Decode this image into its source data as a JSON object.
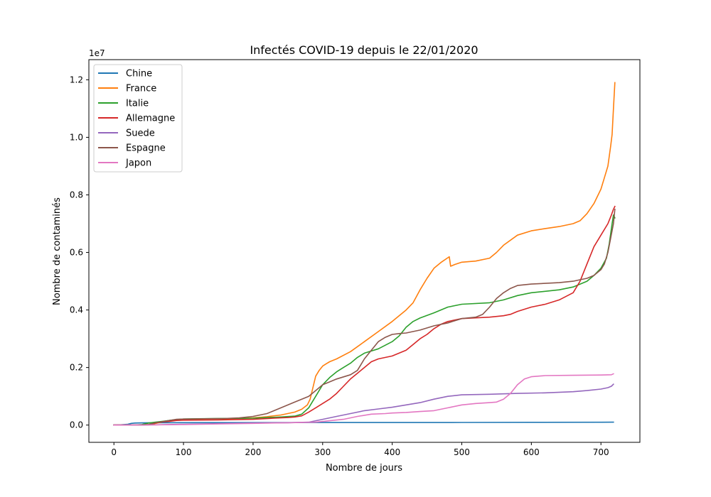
{
  "chart_data": {
    "type": "line",
    "title": "Infectés COVID-19 depuis le 22/01/2020",
    "xlabel": "Nombre de jours",
    "ylabel": "Nombre de contaminés",
    "y_offset_label": "1e7",
    "xlim": [
      -36,
      756
    ],
    "ylim": [
      -0.06,
      1.27
    ],
    "y_unit_multiplier": 10000000,
    "x_ticks": [
      0,
      100,
      200,
      300,
      400,
      500,
      600,
      700
    ],
    "x_tick_labels": [
      "0",
      "100",
      "200",
      "300",
      "400",
      "500",
      "600",
      "700"
    ],
    "y_ticks": [
      0,
      0.2,
      0.4,
      0.6,
      0.8,
      1.0,
      1.2
    ],
    "y_tick_labels": [
      "0.0",
      "0.2",
      "0.4",
      "0.6",
      "0.8",
      "1.0",
      "1.2"
    ],
    "grid": false,
    "legend_position": "top-left",
    "series": [
      {
        "name": "Chine",
        "color": "#1f77b4",
        "points": [
          [
            0,
            0.0005
          ],
          [
            10,
            0.001
          ],
          [
            20,
            0.003
          ],
          [
            25,
            0.006
          ],
          [
            30,
            0.007
          ],
          [
            40,
            0.0077
          ],
          [
            60,
            0.008
          ],
          [
            100,
            0.0083
          ],
          [
            200,
            0.0086
          ],
          [
            300,
            0.0088
          ],
          [
            400,
            0.0089
          ],
          [
            500,
            0.009
          ],
          [
            600,
            0.0095
          ],
          [
            700,
            0.0099
          ],
          [
            718,
            0.01
          ]
        ]
      },
      {
        "name": "France",
        "color": "#ff7f0e",
        "points": [
          [
            0,
            0
          ],
          [
            40,
            0.0002
          ],
          [
            50,
            0.0008
          ],
          [
            55,
            0.002
          ],
          [
            60,
            0.006
          ],
          [
            70,
            0.011
          ],
          [
            80,
            0.016
          ],
          [
            90,
            0.019
          ],
          [
            100,
            0.02
          ],
          [
            150,
            0.022
          ],
          [
            180,
            0.023
          ],
          [
            200,
            0.025
          ],
          [
            220,
            0.029
          ],
          [
            240,
            0.035
          ],
          [
            260,
            0.045
          ],
          [
            270,
            0.055
          ],
          [
            278,
            0.07
          ],
          [
            282,
            0.09
          ],
          [
            286,
            0.13
          ],
          [
            290,
            0.17
          ],
          [
            295,
            0.19
          ],
          [
            300,
            0.205
          ],
          [
            305,
            0.213
          ],
          [
            310,
            0.22
          ],
          [
            320,
            0.23
          ],
          [
            340,
            0.255
          ],
          [
            360,
            0.29
          ],
          [
            380,
            0.325
          ],
          [
            400,
            0.36
          ],
          [
            420,
            0.4
          ],
          [
            430,
            0.425
          ],
          [
            440,
            0.47
          ],
          [
            450,
            0.51
          ],
          [
            460,
            0.545
          ],
          [
            470,
            0.565
          ],
          [
            482,
            0.585
          ],
          [
            484,
            0.552
          ],
          [
            490,
            0.558
          ],
          [
            500,
            0.566
          ],
          [
            520,
            0.57
          ],
          [
            540,
            0.58
          ],
          [
            550,
            0.6
          ],
          [
            560,
            0.625
          ],
          [
            580,
            0.66
          ],
          [
            600,
            0.675
          ],
          [
            620,
            0.683
          ],
          [
            640,
            0.69
          ],
          [
            660,
            0.7
          ],
          [
            670,
            0.71
          ],
          [
            680,
            0.735
          ],
          [
            690,
            0.77
          ],
          [
            700,
            0.82
          ],
          [
            705,
            0.86
          ],
          [
            710,
            0.9
          ],
          [
            714,
            0.97
          ],
          [
            716,
            1.01
          ],
          [
            718,
            1.1
          ],
          [
            720,
            1.19
          ]
        ]
      },
      {
        "name": "Italie",
        "color": "#2ca02c",
        "points": [
          [
            0,
            0
          ],
          [
            30,
            0.0002
          ],
          [
            40,
            0.002
          ],
          [
            50,
            0.007
          ],
          [
            60,
            0.01
          ],
          [
            70,
            0.013
          ],
          [
            80,
            0.016
          ],
          [
            90,
            0.019
          ],
          [
            100,
            0.021
          ],
          [
            120,
            0.022
          ],
          [
            150,
            0.023
          ],
          [
            200,
            0.024
          ],
          [
            220,
            0.026
          ],
          [
            240,
            0.028
          ],
          [
            260,
            0.031
          ],
          [
            270,
            0.038
          ],
          [
            280,
            0.06
          ],
          [
            290,
            0.1
          ],
          [
            300,
            0.14
          ],
          [
            310,
            0.165
          ],
          [
            320,
            0.185
          ],
          [
            330,
            0.2
          ],
          [
            340,
            0.215
          ],
          [
            350,
            0.235
          ],
          [
            360,
            0.25
          ],
          [
            380,
            0.265
          ],
          [
            400,
            0.29
          ],
          [
            410,
            0.31
          ],
          [
            420,
            0.34
          ],
          [
            430,
            0.36
          ],
          [
            440,
            0.372
          ],
          [
            460,
            0.39
          ],
          [
            480,
            0.41
          ],
          [
            500,
            0.42
          ],
          [
            540,
            0.425
          ],
          [
            560,
            0.435
          ],
          [
            580,
            0.45
          ],
          [
            600,
            0.46
          ],
          [
            640,
            0.47
          ],
          [
            660,
            0.48
          ],
          [
            680,
            0.5
          ],
          [
            690,
            0.52
          ],
          [
            700,
            0.545
          ],
          [
            708,
            0.58
          ],
          [
            712,
            0.63
          ],
          [
            716,
            0.7
          ],
          [
            718,
            0.73
          ],
          [
            720,
            0.72
          ]
        ]
      },
      {
        "name": "Allemagne",
        "color": "#d62728",
        "points": [
          [
            0,
            0
          ],
          [
            40,
            0.0002
          ],
          [
            50,
            0.002
          ],
          [
            60,
            0.007
          ],
          [
            70,
            0.011
          ],
          [
            80,
            0.013
          ],
          [
            90,
            0.016
          ],
          [
            100,
            0.017
          ],
          [
            150,
            0.018
          ],
          [
            200,
            0.02
          ],
          [
            230,
            0.024
          ],
          [
            250,
            0.026
          ],
          [
            260,
            0.028
          ],
          [
            270,
            0.032
          ],
          [
            280,
            0.045
          ],
          [
            290,
            0.06
          ],
          [
            300,
            0.075
          ],
          [
            310,
            0.09
          ],
          [
            320,
            0.11
          ],
          [
            330,
            0.135
          ],
          [
            340,
            0.16
          ],
          [
            350,
            0.18
          ],
          [
            360,
            0.2
          ],
          [
            370,
            0.22
          ],
          [
            380,
            0.23
          ],
          [
            400,
            0.24
          ],
          [
            420,
            0.26
          ],
          [
            430,
            0.28
          ],
          [
            440,
            0.3
          ],
          [
            450,
            0.315
          ],
          [
            460,
            0.335
          ],
          [
            470,
            0.35
          ],
          [
            480,
            0.36
          ],
          [
            500,
            0.37
          ],
          [
            540,
            0.375
          ],
          [
            560,
            0.38
          ],
          [
            570,
            0.385
          ],
          [
            580,
            0.395
          ],
          [
            600,
            0.41
          ],
          [
            620,
            0.42
          ],
          [
            640,
            0.435
          ],
          [
            660,
            0.46
          ],
          [
            670,
            0.5
          ],
          [
            680,
            0.56
          ],
          [
            690,
            0.62
          ],
          [
            700,
            0.66
          ],
          [
            710,
            0.7
          ],
          [
            715,
            0.73
          ],
          [
            718,
            0.75
          ],
          [
            720,
            0.76
          ]
        ]
      },
      {
        "name": "Suede",
        "color": "#9467bd",
        "points": [
          [
            0,
            0
          ],
          [
            40,
            0.0003
          ],
          [
            60,
            0.001
          ],
          [
            80,
            0.002
          ],
          [
            100,
            0.003
          ],
          [
            150,
            0.005
          ],
          [
            200,
            0.007
          ],
          [
            250,
            0.008
          ],
          [
            280,
            0.01
          ],
          [
            300,
            0.02
          ],
          [
            320,
            0.03
          ],
          [
            340,
            0.04
          ],
          [
            360,
            0.05
          ],
          [
            380,
            0.056
          ],
          [
            400,
            0.062
          ],
          [
            420,
            0.07
          ],
          [
            440,
            0.078
          ],
          [
            460,
            0.09
          ],
          [
            480,
            0.1
          ],
          [
            500,
            0.105
          ],
          [
            540,
            0.107
          ],
          [
            580,
            0.11
          ],
          [
            620,
            0.112
          ],
          [
            660,
            0.116
          ],
          [
            680,
            0.12
          ],
          [
            700,
            0.125
          ],
          [
            710,
            0.13
          ],
          [
            715,
            0.135
          ],
          [
            718,
            0.142
          ]
        ]
      },
      {
        "name": "Espagne",
        "color": "#8c564b",
        "points": [
          [
            0,
            0
          ],
          [
            40,
            0.0002
          ],
          [
            50,
            0.002
          ],
          [
            60,
            0.008
          ],
          [
            70,
            0.012
          ],
          [
            80,
            0.016
          ],
          [
            90,
            0.02
          ],
          [
            100,
            0.021
          ],
          [
            130,
            0.022
          ],
          [
            160,
            0.023
          ],
          [
            180,
            0.025
          ],
          [
            200,
            0.03
          ],
          [
            220,
            0.04
          ],
          [
            240,
            0.06
          ],
          [
            260,
            0.08
          ],
          [
            280,
            0.1
          ],
          [
            290,
            0.12
          ],
          [
            300,
            0.14
          ],
          [
            310,
            0.15
          ],
          [
            320,
            0.16
          ],
          [
            340,
            0.175
          ],
          [
            350,
            0.19
          ],
          [
            360,
            0.23
          ],
          [
            370,
            0.26
          ],
          [
            380,
            0.29
          ],
          [
            390,
            0.305
          ],
          [
            400,
            0.315
          ],
          [
            410,
            0.318
          ],
          [
            420,
            0.32
          ],
          [
            440,
            0.33
          ],
          [
            460,
            0.345
          ],
          [
            480,
            0.355
          ],
          [
            500,
            0.37
          ],
          [
            520,
            0.375
          ],
          [
            530,
            0.385
          ],
          [
            540,
            0.41
          ],
          [
            550,
            0.44
          ],
          [
            560,
            0.46
          ],
          [
            570,
            0.475
          ],
          [
            580,
            0.485
          ],
          [
            600,
            0.49
          ],
          [
            640,
            0.495
          ],
          [
            660,
            0.5
          ],
          [
            670,
            0.505
          ],
          [
            680,
            0.51
          ],
          [
            690,
            0.52
          ],
          [
            700,
            0.54
          ],
          [
            705,
            0.56
          ],
          [
            710,
            0.6
          ],
          [
            714,
            0.65
          ],
          [
            718,
            0.7
          ],
          [
            720,
            0.75
          ]
        ]
      },
      {
        "name": "Japon",
        "color": "#e377c2",
        "points": [
          [
            0,
            0
          ],
          [
            50,
            0.0005
          ],
          [
            100,
            0.002
          ],
          [
            150,
            0.004
          ],
          [
            200,
            0.006
          ],
          [
            250,
            0.008
          ],
          [
            290,
            0.01
          ],
          [
            310,
            0.015
          ],
          [
            330,
            0.02
          ],
          [
            350,
            0.03
          ],
          [
            370,
            0.038
          ],
          [
            390,
            0.04
          ],
          [
            400,
            0.042
          ],
          [
            420,
            0.044
          ],
          [
            440,
            0.047
          ],
          [
            460,
            0.05
          ],
          [
            480,
            0.06
          ],
          [
            500,
            0.07
          ],
          [
            520,
            0.075
          ],
          [
            540,
            0.078
          ],
          [
            550,
            0.08
          ],
          [
            560,
            0.09
          ],
          [
            570,
            0.11
          ],
          [
            580,
            0.14
          ],
          [
            590,
            0.16
          ],
          [
            600,
            0.168
          ],
          [
            620,
            0.172
          ],
          [
            660,
            0.173
          ],
          [
            700,
            0.174
          ],
          [
            715,
            0.175
          ],
          [
            718,
            0.178
          ]
        ]
      }
    ]
  }
}
